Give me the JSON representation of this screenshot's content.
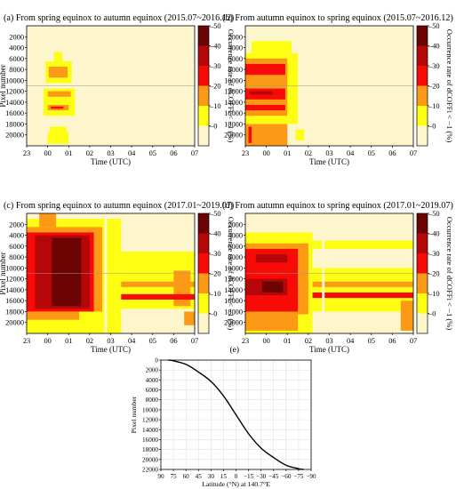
{
  "colors": {
    "background": "#ffffff",
    "levels": [
      "#fdf5cc",
      "#fefe12",
      "#fc9a16",
      "#f80a07",
      "#b50707",
      "#6d0404"
    ],
    "curve": "#000000",
    "grid": "#dddddd",
    "divider_line": "#999999"
  },
  "colorbar": {
    "label": "Occurrence rate of dCOFFi < −1 (%)",
    "ticks": [
      "0",
      "10",
      "20",
      "30",
      "40",
      "50"
    ]
  },
  "chart_data": [
    {
      "id": "a",
      "type": "heatmap",
      "title": "(a) From spring equinox to autumn equinox (2015.07~2016.12)",
      "xlabel": "Time (UTC)",
      "ylabel": "Pixel number",
      "x_ticks": [
        "23",
        "00",
        "01",
        "02",
        "03",
        "04",
        "05",
        "06",
        "07"
      ],
      "y_ticks": [
        "2000",
        "4000",
        "6000",
        "8000",
        "10000",
        "12000",
        "14000",
        "16000",
        "18000",
        "20000"
      ],
      "xlim": [
        -1,
        7
      ],
      "ylim": [
        22000,
        0
      ],
      "zlim": [
        0,
        50
      ],
      "divider_pixel": 11000,
      "cells": [
        {
          "x": [
            -0.1,
            1.15
          ],
          "y": [
            6500,
            10500
          ],
          "z": 15
        },
        {
          "x": [
            0.05,
            0.95
          ],
          "y": [
            7500,
            9500
          ],
          "z": 25
        },
        {
          "x": [
            -0.2,
            1.3
          ],
          "y": [
            11500,
            16500
          ],
          "z": 15
        },
        {
          "x": [
            0.0,
            1.1
          ],
          "y": [
            12000,
            13000
          ],
          "z": 25
        },
        {
          "x": [
            0.0,
            1.0
          ],
          "y": [
            14500,
            15500
          ],
          "z": 25
        },
        {
          "x": [
            0.15,
            0.75
          ],
          "y": [
            14800,
            15200
          ],
          "z": 35
        },
        {
          "x": [
            0.1,
            0.9
          ],
          "y": [
            18500,
            19500
          ],
          "z": 15
        },
        {
          "x": [
            0.0,
            1.0
          ],
          "y": [
            19500,
            21600
          ],
          "z": 15
        },
        {
          "x": [
            0.3,
            0.7
          ],
          "y": [
            4800,
            6500
          ],
          "z": 15
        }
      ]
    },
    {
      "id": "b",
      "type": "heatmap",
      "title": "(b) From autumn equinox to spring equinox (2015.07~2016.12)",
      "xlabel": "Time (UTC)",
      "ylabel": "",
      "x_ticks": [
        "23",
        "00",
        "01",
        "02",
        "03",
        "04",
        "05",
        "06",
        "07"
      ],
      "y_ticks": [
        "2000",
        "4000",
        "6000",
        "8000",
        "10000",
        "12000",
        "14000",
        "16000",
        "18000",
        "20000"
      ],
      "xlim": [
        -1,
        7
      ],
      "ylim": [
        22000,
        0
      ],
      "zlim": [
        0,
        50
      ],
      "divider_pixel": 11000,
      "cells": [
        {
          "x": [
            -0.7,
            1.2
          ],
          "y": [
            2800,
            5000
          ],
          "z": 15
        },
        {
          "x": [
            -1.0,
            1.5
          ],
          "y": [
            5000,
            18000
          ],
          "z": 15
        },
        {
          "x": [
            -1.0,
            1.0
          ],
          "y": [
            6000,
            16500
          ],
          "z": 25
        },
        {
          "x": [
            -1.0,
            0.9
          ],
          "y": [
            7000,
            9000
          ],
          "z": 35
        },
        {
          "x": [
            -1.0,
            0.9
          ],
          "y": [
            11500,
            13500
          ],
          "z": 35
        },
        {
          "x": [
            -1.0,
            0.9
          ],
          "y": [
            14500,
            15500
          ],
          "z": 35
        },
        {
          "x": [
            -0.8,
            0.3
          ],
          "y": [
            12000,
            12600
          ],
          "z": 45
        },
        {
          "x": [
            -1.0,
            1.0
          ],
          "y": [
            18000,
            22000
          ],
          "z": 25
        },
        {
          "x": [
            -0.85,
            -0.7
          ],
          "y": [
            18500,
            21500
          ],
          "z": 35
        },
        {
          "x": [
            1.4,
            1.8
          ],
          "y": [
            19000,
            21000
          ],
          "z": 15
        }
      ]
    },
    {
      "id": "c",
      "type": "heatmap",
      "title": "(c) From spring equinox to autumn equinox (2017.01~2019.07)",
      "xlabel": "Time (UTC)",
      "ylabel": "Pixel number",
      "x_ticks": [
        "23",
        "00",
        "01",
        "02",
        "03",
        "04",
        "05",
        "06",
        "07"
      ],
      "y_ticks": [
        "2000",
        "4000",
        "6000",
        "8000",
        "10000",
        "12000",
        "14000",
        "16000",
        "18000",
        "20000"
      ],
      "xlim": [
        -1,
        7
      ],
      "ylim": [
        22000,
        0
      ],
      "zlim": [
        0,
        50
      ],
      "divider_pixel": 11000,
      "gap_x": 2.7,
      "cells": [
        {
          "x": [
            -1.0,
            3.5
          ],
          "y": [
            1000,
            22000
          ],
          "z": 15
        },
        {
          "x": [
            3.5,
            7.0
          ],
          "y": [
            7000,
            17500
          ],
          "z": 15
        },
        {
          "x": [
            -0.4,
            0.4
          ],
          "y": [
            0,
            2500
          ],
          "z": 25
        },
        {
          "x": [
            -1.0,
            2.6
          ],
          "y": [
            2500,
            18000
          ],
          "z": 25
        },
        {
          "x": [
            6.0,
            6.8
          ],
          "y": [
            10500,
            17000
          ],
          "z": 25
        },
        {
          "x": [
            -1.0,
            2.2
          ],
          "y": [
            3500,
            18000
          ],
          "z": 35
        },
        {
          "x": [
            -0.6,
            2.0
          ],
          "y": [
            4000,
            17500
          ],
          "z": 45
        },
        {
          "x": [
            0.2,
            1.6
          ],
          "y": [
            4500,
            17000
          ],
          "z": 55
        },
        {
          "x": [
            3.5,
            7.0
          ],
          "y": [
            12500,
            13500
          ],
          "z": 25
        },
        {
          "x": [
            3.5,
            7.0
          ],
          "y": [
            14800,
            15800
          ],
          "z": 35
        },
        {
          "x": [
            -1.0,
            1.5
          ],
          "y": [
            18000,
            19500
          ],
          "z": 25
        },
        {
          "x": [
            6.5,
            7.0
          ],
          "y": [
            18000,
            20500
          ],
          "z": 25
        }
      ]
    },
    {
      "id": "d",
      "type": "heatmap",
      "title": "(d) From autumn equinox to spring equinox (2017.01~2019.07)",
      "xlabel": "Time (UTC)",
      "ylabel": "",
      "x_ticks": [
        "23",
        "00",
        "01",
        "02",
        "03",
        "04",
        "05",
        "06",
        "07"
      ],
      "y_ticks": [
        "2000",
        "4000",
        "6000",
        "8000",
        "10000",
        "12000",
        "14000",
        "16000",
        "18000",
        "20000"
      ],
      "xlim": [
        -1,
        7
      ],
      "ylim": [
        22000,
        0
      ],
      "zlim": [
        0,
        50
      ],
      "divider_pixel": 11000,
      "gap_x": 2.65,
      "cells": [
        {
          "x": [
            -1.0,
            2.2
          ],
          "y": [
            3500,
            22000
          ],
          "z": 15
        },
        {
          "x": [
            2.2,
            7.0
          ],
          "y": [
            5000,
            6500
          ],
          "z": 15
        },
        {
          "x": [
            2.2,
            7.0
          ],
          "y": [
            10000,
            18000
          ],
          "z": 15
        },
        {
          "x": [
            -1.0,
            2.0
          ],
          "y": [
            5500,
            18500
          ],
          "z": 25
        },
        {
          "x": [
            2.2,
            7.0
          ],
          "y": [
            12500,
            13500
          ],
          "z": 25
        },
        {
          "x": [
            2.2,
            7.0
          ],
          "y": [
            14500,
            15500
          ],
          "z": 35
        },
        {
          "x": [
            -1.0,
            1.5
          ],
          "y": [
            6500,
            18000
          ],
          "z": 35
        },
        {
          "x": [
            -0.5,
            1.0
          ],
          "y": [
            7500,
            9000
          ],
          "z": 45
        },
        {
          "x": [
            -1.0,
            1.0
          ],
          "y": [
            12000,
            15000
          ],
          "z": 45
        },
        {
          "x": [
            -0.2,
            0.8
          ],
          "y": [
            12500,
            14500
          ],
          "z": 55
        },
        {
          "x": [
            -1.0,
            1.5
          ],
          "y": [
            18500,
            21500
          ],
          "z": 25
        },
        {
          "x": [
            6.4,
            7.0
          ],
          "y": [
            16000,
            21500
          ],
          "z": 25
        }
      ]
    },
    {
      "id": "e",
      "type": "line",
      "title": "(e)",
      "xlabel": "Latitude (°N) at 140.7°E",
      "ylabel": "Pixel number",
      "x_ticks": [
        "90",
        "75",
        "60",
        "45",
        "30",
        "15",
        "0",
        "−15",
        "−30",
        "−45",
        "−60",
        "−75",
        "−90"
      ],
      "y_ticks": [
        "0",
        "2000",
        "4000",
        "6000",
        "8000",
        "10000",
        "12000",
        "14000",
        "16000",
        "18000",
        "20000",
        "22000"
      ],
      "xlim": [
        90,
        -90
      ],
      "ylim": [
        22000,
        0
      ],
      "grid": true,
      "x": [
        81,
        75,
        60,
        45,
        30,
        15,
        0,
        -15,
        -30,
        -45,
        -60,
        -75,
        -81
      ],
      "y": [
        0,
        150,
        850,
        2400,
        4300,
        7200,
        11000,
        14800,
        17700,
        19600,
        21150,
        21850,
        22000
      ]
    }
  ]
}
